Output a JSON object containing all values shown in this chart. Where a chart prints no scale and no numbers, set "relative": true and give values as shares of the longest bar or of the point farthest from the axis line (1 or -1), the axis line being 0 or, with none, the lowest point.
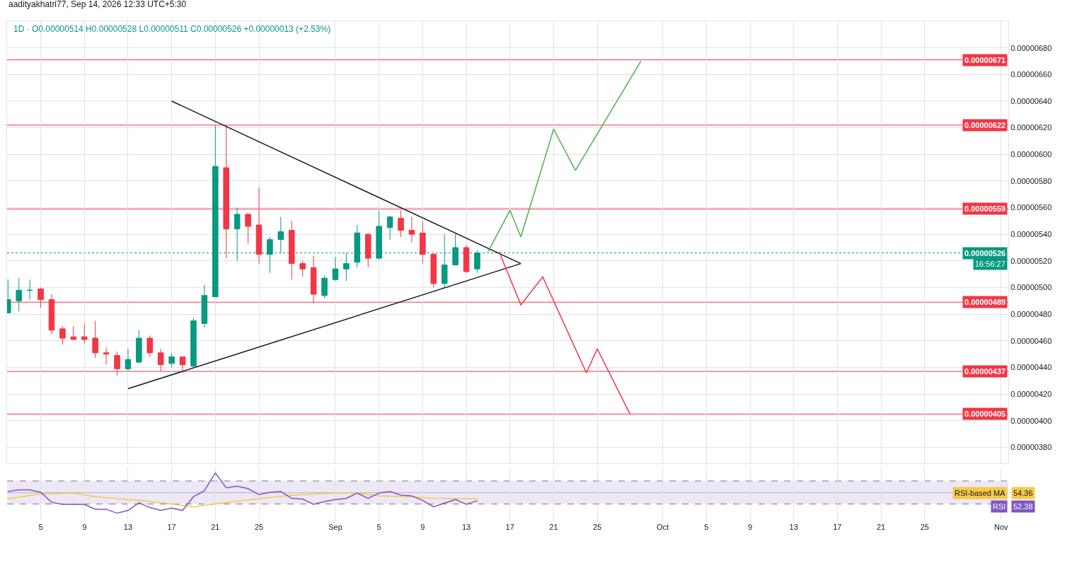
{
  "chart_data": [
    {
      "type": "candlestick",
      "annotations": [
        "aadityakhatri77, Sep 14, 2026 12:33 UTC+5:30",
        "1D · O0.00000514 H0.00000528 L0.00000511 C0.00000526 +0.00000013 (+2.53%)",
        "16:56:27"
      ],
      "x": [
        "2026-08-02",
        "2026-08-03",
        "2026-08-04",
        "2026-08-05",
        "2026-08-06",
        "2026-08-07",
        "2026-08-08",
        "2026-08-09",
        "2026-08-10",
        "2026-08-11",
        "2026-08-12",
        "2026-08-13",
        "2026-08-14",
        "2026-08-15",
        "2026-08-16",
        "2026-08-17",
        "2026-08-18",
        "2026-08-19",
        "2026-08-20",
        "2026-08-21",
        "2026-08-22",
        "2026-08-23",
        "2026-08-24",
        "2026-08-25",
        "2026-08-26",
        "2026-08-27",
        "2026-08-28",
        "2026-08-29",
        "2026-08-30",
        "2026-08-31",
        "2026-09-01",
        "2026-09-02",
        "2026-09-03",
        "2026-09-04",
        "2026-09-05",
        "2026-09-06",
        "2026-09-07",
        "2026-09-08",
        "2026-09-09",
        "2026-09-10",
        "2026-09-11",
        "2026-09-12",
        "2026-09-13",
        "2026-09-14"
      ],
      "ohlc": [
        [
          4.81e-06,
          5.06e-06,
          4.81e-06,
          4.91e-06
        ],
        [
          4.9e-06,
          5.07e-06,
          4.82e-06,
          4.98e-06
        ],
        [
          4.98e-06,
          5.06e-06,
          4.91e-06,
          4.98e-06
        ],
        [
          4.99e-06,
          5e-06,
          4.85e-06,
          4.91e-06
        ],
        [
          4.91e-06,
          4.95e-06,
          4.65e-06,
          4.68e-06
        ],
        [
          4.69e-06,
          4.71e-06,
          4.57e-06,
          4.62e-06
        ],
        [
          4.63e-06,
          4.71e-06,
          4.61e-06,
          4.61e-06
        ],
        [
          4.63e-06,
          4.73e-06,
          4.58e-06,
          4.61e-06
        ],
        [
          4.62e-06,
          4.75e-06,
          4.47e-06,
          4.51e-06
        ],
        [
          4.51e-06,
          4.55e-06,
          4.42e-06,
          4.5e-06
        ],
        [
          4.49e-06,
          4.52e-06,
          4.34e-06,
          4.39e-06
        ],
        [
          4.39e-06,
          4.54e-06,
          4.37e-06,
          4.46e-06
        ],
        [
          4.44e-06,
          4.68e-06,
          4.43e-06,
          4.62e-06
        ],
        [
          4.62e-06,
          4.64e-06,
          4.48e-06,
          4.51e-06
        ],
        [
          4.51e-06,
          4.54e-06,
          4.37e-06,
          4.42e-06
        ],
        [
          4.43e-06,
          4.51e-06,
          4.4e-06,
          4.48e-06
        ],
        [
          4.48e-06,
          4.48e-06,
          4.36e-06,
          4.42e-06
        ],
        [
          4.41e-06,
          4.77e-06,
          4.4e-06,
          4.75e-06
        ],
        [
          4.73e-06,
          5.02e-06,
          4.7e-06,
          4.94e-06
        ],
        [
          4.93e-06,
          6.22e-06,
          4.93e-06,
          5.91e-06
        ],
        [
          5.9e-06,
          6.22e-06,
          5.22e-06,
          5.44e-06
        ],
        [
          5.44e-06,
          5.6e-06,
          5.2e-06,
          5.55e-06
        ],
        [
          5.55e-06,
          5.56e-06,
          5.33e-06,
          5.46e-06
        ],
        [
          5.47e-06,
          5.75e-06,
          5.18e-06,
          5.25e-06
        ],
        [
          5.25e-06,
          5.38e-06,
          5.11e-06,
          5.36e-06
        ],
        [
          5.36e-06,
          5.53e-06,
          5.26e-06,
          5.42e-06
        ],
        [
          5.43e-06,
          5.5e-06,
          5.06e-06,
          5.18e-06
        ],
        [
          5.18e-06,
          5.2e-06,
          5.08e-06,
          5.14e-06
        ],
        [
          5.15e-06,
          5.24e-06,
          4.88e-06,
          4.95e-06
        ],
        [
          4.94e-06,
          5.09e-06,
          4.92e-06,
          5.07e-06
        ],
        [
          5.06e-06,
          5.23e-06,
          5.05e-06,
          5.14e-06
        ],
        [
          5.14e-06,
          5.26e-06,
          5.05e-06,
          5.18e-06
        ],
        [
          5.19e-06,
          5.47e-06,
          5.15e-06,
          5.41e-06
        ],
        [
          5.4e-06,
          5.41e-06,
          5.15e-06,
          5.22e-06
        ],
        [
          5.22e-06,
          5.58e-06,
          5.21e-06,
          5.46e-06
        ],
        [
          5.45e-06,
          5.54e-06,
          5.36e-06,
          5.53e-06
        ],
        [
          5.52e-06,
          5.58e-06,
          5.38e-06,
          5.43e-06
        ],
        [
          5.43e-06,
          5.53e-06,
          5.34e-06,
          5.4e-06
        ],
        [
          5.41e-06,
          5.5e-06,
          5.18e-06,
          5.25e-06
        ],
        [
          5.25e-06,
          5.26e-06,
          5e-06,
          5.03e-06
        ],
        [
          5.03e-06,
          5.4e-06,
          5e-06,
          5.17e-06
        ],
        [
          5.17e-06,
          5.4e-06,
          5.17e-06,
          5.3e-06
        ],
        [
          5.3e-06,
          5.32e-06,
          5.11e-06,
          5.12e-06
        ],
        [
          5.14e-06,
          5.28e-06,
          5.11e-06,
          5.26e-06
        ]
      ],
      "colors": [
        "#089981",
        "#089981",
        "#089981",
        "#f23645",
        "#f23645",
        "#f23645",
        "#f23645",
        "#f23645",
        "#f23645",
        "#f23645",
        "#f23645",
        "#089981",
        "#089981",
        "#f23645",
        "#f23645",
        "#089981",
        "#f23645",
        "#089981",
        "#089981",
        "#089981",
        "#f23645",
        "#089981",
        "#f23645",
        "#f23645",
        "#089981",
        "#089981",
        "#f23645",
        "#f23645",
        "#f23645",
        "#089981",
        "#089981",
        "#089981",
        "#089981",
        "#f23645",
        "#089981",
        "#089981",
        "#f23645",
        "#f23645",
        "#f23645",
        "#f23645",
        "#089981",
        "#089981",
        "#f23645",
        "#089981"
      ],
      "series": [
        {
          "type": "line",
          "color": "#131722",
          "x": [
            "2026-08-17",
            "2026-09-18"
          ],
          "values": [
            6.4e-06,
            5.18e-06
          ]
        },
        {
          "type": "line",
          "color": "#131722",
          "x": [
            "2026-08-13",
            "2026-09-18"
          ],
          "values": [
            4.24e-06,
            5.18e-06
          ]
        },
        {
          "type": "line",
          "color": "#4caf50",
          "x": [
            "2026-09-15",
            "2026-09-17",
            "2026-09-18",
            "2026-09-21",
            "2026-09-23",
            "2026-09-29"
          ],
          "values": [
            5.27e-06,
            5.58e-06,
            5.38e-06,
            6.19e-06,
            5.88e-06,
            6.7e-06
          ]
        },
        {
          "type": "line",
          "color": "#f23645",
          "x": [
            "2026-09-16",
            "2026-09-18",
            "2026-09-20",
            "2026-09-24",
            "2026-09-25",
            "2026-09-28"
          ],
          "values": [
            5.27e-06,
            4.87e-06,
            5.08e-06,
            4.36e-06,
            4.54e-06,
            4.05e-06
          ]
        }
      ],
      "ref_lines": [
        {
          "axis": "y",
          "value": 6.71e-06,
          "label": "0.00000671",
          "color": "#f23645"
        },
        {
          "axis": "y",
          "value": 6.22e-06,
          "label": "0.00000622",
          "color": "#f23645"
        },
        {
          "axis": "y",
          "value": 5.59e-06,
          "label": "0.00000559",
          "color": "#f23645"
        },
        {
          "axis": "y",
          "value": 5.26e-06,
          "label": "0.00000526",
          "color": "#089981",
          "line_style": "dotted"
        },
        {
          "axis": "y",
          "value": 4.89e-06,
          "label": "0.00000489",
          "color": "#f23645"
        },
        {
          "axis": "y",
          "value": 4.37e-06,
          "label": "0.00000437",
          "color": "#f23645"
        },
        {
          "axis": "y",
          "value": 4.05e-06,
          "label": "0.00000405",
          "color": "#f23645"
        }
      ],
      "xlim": [
        "2026-08-01T22:00",
        "2026-11-01T16:00"
      ],
      "xticks": [
        {
          "value": "2026-08-05",
          "label": null
        },
        {
          "value": "2026-08-09",
          "label": null
        },
        {
          "value": "2026-08-13",
          "label": null
        },
        {
          "value": "2026-08-17",
          "label": null
        },
        {
          "value": "2026-08-21",
          "label": null
        },
        {
          "value": "2026-08-25",
          "label": null
        },
        {
          "value": "2026-09-01",
          "label": null
        },
        {
          "value": "2026-09-05",
          "label": null
        },
        {
          "value": "2026-09-09",
          "label": null
        },
        {
          "value": "2026-09-13",
          "label": null
        },
        {
          "value": "2026-09-17",
          "label": null
        },
        {
          "value": "2026-09-21",
          "label": null
        },
        {
          "value": "2026-09-25",
          "label": null
        },
        {
          "value": "2026-10-01",
          "label": null
        },
        {
          "value": "2026-10-05",
          "label": null
        },
        {
          "value": "2026-10-09",
          "label": null
        },
        {
          "value": "2026-10-13",
          "label": null
        },
        {
          "value": "2026-10-17",
          "label": null
        },
        {
          "value": "2026-10-21",
          "label": null
        },
        {
          "value": "2026-10-25",
          "label": null
        },
        {
          "value": "2026-11-01",
          "label": null
        }
      ],
      "ylim": [
        3.68e-06,
        7e-06
      ],
      "yticks": [
        {
          "value": 3.8e-06,
          "label": "0.00000380"
        },
        {
          "value": 4e-06,
          "label": "0.00000400"
        },
        {
          "value": 4.2e-06,
          "label": "0.00000420"
        },
        {
          "value": 4.4e-06,
          "label": "0.00000440"
        },
        {
          "value": 4.6e-06,
          "label": "0.00000460"
        },
        {
          "value": 4.8e-06,
          "label": "0.00000480"
        },
        {
          "value": 5e-06,
          "label": "0.00000500"
        },
        {
          "value": 5.2e-06,
          "label": "0.00000520"
        },
        {
          "value": 5.4e-06,
          "label": "0.00000540"
        },
        {
          "value": 5.6e-06,
          "label": "0.00000560"
        },
        {
          "value": 5.8e-06,
          "label": "0.00000580"
        },
        {
          "value": 6e-06,
          "label": "0.00000600"
        },
        {
          "value": 6.2e-06,
          "label": "0.00000620"
        },
        {
          "value": 6.4e-06,
          "label": "0.00000640"
        },
        {
          "value": 6.6e-06,
          "label": "0.00000660"
        },
        {
          "value": 6.8e-06,
          "label": "0.00000680"
        }
      ],
      "tick_labels": "y",
      "grid": true
    },
    {
      "type": "line",
      "relative": true,
      "x": [
        "2026-08-02",
        "2026-08-03",
        "2026-08-04",
        "2026-08-05",
        "2026-08-06",
        "2026-08-07",
        "2026-08-08",
        "2026-08-09",
        "2026-08-10",
        "2026-08-11",
        "2026-08-12",
        "2026-08-13",
        "2026-08-14",
        "2026-08-15",
        "2026-08-16",
        "2026-08-17",
        "2026-08-18",
        "2026-08-19",
        "2026-08-20",
        "2026-08-21",
        "2026-08-22",
        "2026-08-23",
        "2026-08-24",
        "2026-08-25",
        "2026-08-26",
        "2026-08-27",
        "2026-08-28",
        "2026-08-29",
        "2026-08-30",
        "2026-08-31",
        "2026-09-01",
        "2026-09-02",
        "2026-09-03",
        "2026-09-04",
        "2026-09-05",
        "2026-09-06",
        "2026-09-07",
        "2026-09-08",
        "2026-09-09",
        "2026-09-10",
        "2026-09-11",
        "2026-09-12",
        "2026-09-13",
        "2026-09-14"
      ],
      "series": [
        {
          "name": "RSI-based MA",
          "color": "#f7c948",
          "x": [
            "2026-08-02",
            "2026-08-05",
            "2026-08-08",
            "2026-08-10",
            "2026-08-14",
            "2026-08-17",
            "2026-08-19",
            "2026-08-21",
            "2026-08-25",
            "2026-08-28",
            "2026-09-01",
            "2026-09-03",
            "2026-09-05",
            "2026-09-08",
            "2026-09-10",
            "2026-09-14"
          ],
          "values": [
            0.36,
            0.48,
            0.5,
            0.41,
            0.32,
            0.23,
            0.16,
            0.23,
            0.36,
            0.45,
            0.5,
            0.5,
            0.43,
            0.41,
            0.37,
            0.36
          ]
        },
        {
          "name": "RSI",
          "color": "#7e57c2",
          "values": [
            0.54,
            0.58,
            0.58,
            0.52,
            0.27,
            0.22,
            0.22,
            0.22,
            0.1,
            0.1,
            0,
            0.07,
            0.26,
            0.14,
            0.07,
            0.13,
            0.07,
            0.41,
            0.56,
            1,
            0.63,
            0.67,
            0.61,
            0.46,
            0.52,
            0.54,
            0.37,
            0.35,
            0.22,
            0.29,
            0.34,
            0.37,
            0.5,
            0.37,
            0.5,
            0.54,
            0.45,
            0.43,
            0.32,
            0.16,
            0.25,
            0.34,
            0.22,
            0.31
          ]
        }
      ],
      "annotations": [
        "54.36",
        "52.38"
      ],
      "legend": "right",
      "ref_lines": [
        {
          "axis": "y",
          "value": 0.8,
          "color": "#787b86",
          "line_style": "dashed"
        },
        {
          "axis": "y",
          "value": 0.51,
          "color": "#b2b5be",
          "line_style": "solid"
        },
        {
          "axis": "y",
          "value": 0.23,
          "color": "#787b86",
          "line_style": "dashed"
        }
      ],
      "bands": [
        {
          "axis": "y",
          "from": 0.23,
          "to": 0.8,
          "color": "#ede7f6"
        }
      ],
      "xlim": [
        "2026-08-01T22:00",
        "2026-11-01T16:00"
      ],
      "xticks": [
        {
          "value": "2026-08-05",
          "label": "5"
        },
        {
          "value": "2026-08-09",
          "label": "9"
        },
        {
          "value": "2026-08-13",
          "label": "13"
        },
        {
          "value": "2026-08-17",
          "label": "17"
        },
        {
          "value": "2026-08-21",
          "label": "21"
        },
        {
          "value": "2026-08-25",
          "label": "25"
        },
        {
          "value": "2026-09-01",
          "label": "Sep"
        },
        {
          "value": "2026-09-05",
          "label": "5"
        },
        {
          "value": "2026-09-09",
          "label": "9"
        },
        {
          "value": "2026-09-13",
          "label": "13"
        },
        {
          "value": "2026-09-17",
          "label": "17"
        },
        {
          "value": "2026-09-21",
          "label": "21"
        },
        {
          "value": "2026-09-25",
          "label": "25"
        },
        {
          "value": "2026-10-01",
          "label": "Oct"
        },
        {
          "value": "2026-10-05",
          "label": "5"
        },
        {
          "value": "2026-10-09",
          "label": "9"
        },
        {
          "value": "2026-10-13",
          "label": "13"
        },
        {
          "value": "2026-10-17",
          "label": "17"
        },
        {
          "value": "2026-10-21",
          "label": "21"
        },
        {
          "value": "2026-10-25",
          "label": "25"
        },
        {
          "value": "2026-11-01",
          "label": "Nov"
        }
      ],
      "tick_labels": "x",
      "grid": "x"
    }
  ]
}
